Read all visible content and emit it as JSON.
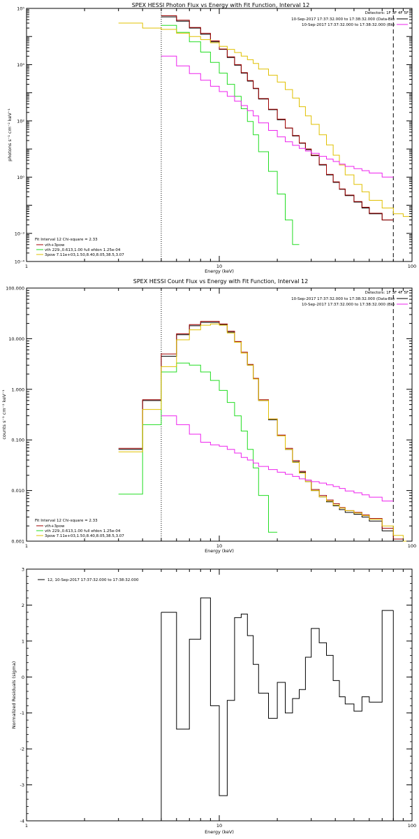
{
  "colors": {
    "data": "#000000",
    "total": "#a00000",
    "thermal": "#22dd22",
    "powerlaw": "#e0c000",
    "background": "#ee22ee",
    "frame": "#000000"
  },
  "chart_data": [
    {
      "type": "line",
      "title": "SPEX HESSI Photon Flux vs Energy with Fit Function, Interval 12",
      "xlabel": "Energy (keV)",
      "ylabel": "photons s⁻¹ cm⁻² keV⁻¹",
      "xscale": "log",
      "yscale": "log",
      "xlim": [
        1,
        100
      ],
      "ylim": [
        0.0001,
        100000
      ],
      "xticks": [
        "1",
        "10",
        "100"
      ],
      "yticks": [
        "10⁻⁴",
        "10⁻³",
        "10⁻²",
        "10⁻¹",
        "10⁰",
        "10¹",
        "10²",
        "10³",
        "10⁴",
        "10⁵"
      ],
      "yticks_printed": [
        "10⁻⁴",
        "10⁻³",
        "",
        "10⁰",
        "",
        "10²",
        "",
        "10⁴",
        "",
        "10⁵"
      ],
      "header_lines": [
        "Detectors: 1F 3F 4F 5F",
        "10-Sep-2017 17:37:32.000 to 17:38:32.000 (Data-Bk)",
        "10-Sep-2017 17:37:32.000 to 17:38:32.000 (Bk)"
      ],
      "legend": [
        "Fit Interval 12   Chi-square = 2.33",
        "vth+3pow",
        "vth 229.,0.613,1.00  full efdon 1.25e-04",
        "3pow 7.11e+03,1.50,8.40,8.05,38.5,3.07"
      ],
      "vlines": [
        {
          "x": 5.0,
          "style": "dotted"
        },
        {
          "x": 80,
          "style": "dashed"
        }
      ],
      "edges": [
        3.0,
        4.0,
        5.0,
        6.0,
        7.0,
        8.0,
        9.0,
        10.0,
        11.0,
        12.0,
        13.0,
        14.0,
        15.0,
        16.0,
        18.0,
        20.0,
        22.0,
        24.0,
        26.0,
        28.0,
        30.0,
        33.0,
        36.0,
        39.0,
        42.0,
        45.0,
        50.0,
        55.0,
        60.0,
        70.0,
        80.0,
        90.0,
        100.0
      ],
      "series": [
        {
          "name": "Data-Bk",
          "color": "#000000",
          "values": [
            null,
            null,
            50000,
            35000,
            20000,
            12000,
            6500,
            3500,
            1800,
            950,
            500,
            260,
            140,
            60,
            25,
            11,
            5.5,
            2.9,
            1.6,
            0.95,
            0.58,
            0.27,
            0.12,
            0.065,
            0.037,
            0.022,
            0.013,
            0.008,
            0.005,
            0.003,
            null,
            null
          ]
        },
        {
          "name": "vth+3pow",
          "color": "#a00000",
          "values": [
            null,
            null,
            55000,
            38000,
            21000,
            13000,
            7000,
            3600,
            1900,
            1000,
            520,
            270,
            145,
            62,
            26,
            11.5,
            5.6,
            3.0,
            1.65,
            1.0,
            0.6,
            0.28,
            0.125,
            0.068,
            0.038,
            0.023,
            0.0135,
            0.0085,
            0.0052,
            0.003,
            null,
            null
          ]
        },
        {
          "name": "vth",
          "color": "#22dd22",
          "values": [
            null,
            null,
            25000,
            14000,
            6500,
            2800,
            1200,
            500,
            200,
            75,
            27,
            9.5,
            3.2,
            0.8,
            0.16,
            0.025,
            0.003,
            0.0004,
            null,
            null,
            null,
            null,
            null,
            null,
            null,
            null,
            null,
            null,
            null,
            null,
            null,
            null
          ]
        },
        {
          "name": "3pow",
          "color": "#e0c000",
          "values": [
            30000,
            20000,
            18000,
            13000,
            10000,
            7800,
            6000,
            4500,
            3500,
            2700,
            2000,
            1500,
            1100,
            700,
            420,
            240,
            130,
            65,
            32,
            15,
            7.5,
            3.2,
            1.4,
            0.6,
            0.27,
            0.12,
            0.055,
            0.03,
            0.015,
            0.008,
            0.005,
            0.004
          ]
        },
        {
          "name": "Bk",
          "color": "#ee22ee",
          "values": [
            null,
            null,
            2000,
            900,
            480,
            280,
            170,
            110,
            75,
            50,
            35,
            23,
            15,
            8.5,
            4.6,
            2.7,
            1.8,
            1.35,
            1.05,
            0.85,
            0.7,
            0.55,
            0.44,
            0.36,
            0.29,
            0.24,
            0.2,
            0.17,
            0.14,
            0.1,
            null,
            null
          ]
        }
      ]
    },
    {
      "type": "line",
      "title": "SPEX HESSI Count Flux vs Energy with Fit Function, Interval 12",
      "xlabel": "Energy (keV)",
      "ylabel": "counts s⁻¹ cm⁻² keV⁻¹",
      "xscale": "log",
      "yscale": "log",
      "xlim": [
        1,
        100
      ],
      "ylim": [
        0.001,
        100
      ],
      "xticks": [
        "1",
        "10",
        "100"
      ],
      "yticks": [
        "0.001",
        "0.010",
        "0.100",
        "1.000",
        "10.000",
        "100.000"
      ],
      "header_lines": [
        "Detectors: 1F 3F 4F 5F",
        "10-Sep-2017 17:37:32.000 to 17:38:32.000 (Data-Bk)",
        "10-Sep-2017 17:37:32.000 to 17:38:32.000 (Bk)"
      ],
      "legend": [
        "Fit Interval 12   Chi-square = 2.33",
        "vth+3pow",
        "vth 229.,0.613,1.00  full efdon 1.25e-04",
        "3pow 7.11e+03,1.50,8.40,8.05,38.5,3.07"
      ],
      "vlines": [
        {
          "x": 5.0,
          "style": "dotted"
        },
        {
          "x": 80,
          "style": "dashed"
        }
      ],
      "edges": [
        3.0,
        4.0,
        5.0,
        6.0,
        7.0,
        8.0,
        9.0,
        10.0,
        11.0,
        12.0,
        13.0,
        14.0,
        15.0,
        16.0,
        18.0,
        20.0,
        22.0,
        24.0,
        26.0,
        28.0,
        30.0,
        33.0,
        36.0,
        39.0,
        42.0,
        45.0,
        50.0,
        55.0,
        60.0,
        70.0,
        80.0,
        90.0,
        100.0
      ],
      "series": [
        {
          "name": "Data-Bk",
          "color": "#000000",
          "values": [
            0.065,
            0.6,
            4.5,
            12,
            18,
            21,
            21,
            19,
            13.5,
            8.5,
            5.2,
            3.0,
            1.6,
            0.6,
            0.25,
            0.12,
            0.065,
            0.037,
            0.023,
            0.015,
            0.01,
            0.0075,
            0.006,
            0.005,
            0.0042,
            0.0037,
            0.0034,
            0.003,
            0.0025,
            0.0016,
            0.001,
            null
          ]
        },
        {
          "name": "vth+3pow",
          "color": "#a00000",
          "values": [
            0.068,
            0.62,
            5.0,
            12.5,
            19,
            22,
            22,
            19.5,
            14,
            8.8,
            5.4,
            3.1,
            1.65,
            0.62,
            0.26,
            0.125,
            0.068,
            0.039,
            0.024,
            0.016,
            0.0105,
            0.008,
            0.0065,
            0.0055,
            0.0046,
            0.004,
            0.0037,
            0.0033,
            0.0028,
            0.0018,
            0.0011,
            null
          ]
        },
        {
          "name": "vth",
          "color": "#22dd22",
          "values": [
            0.0085,
            0.2,
            2.2,
            3.3,
            3.0,
            2.2,
            1.5,
            0.95,
            0.55,
            0.3,
            0.15,
            0.065,
            0.028,
            0.008,
            0.0015,
            null,
            null,
            null,
            null,
            null,
            null,
            null,
            null,
            null,
            null,
            null,
            null,
            null,
            null,
            null,
            null,
            null
          ]
        },
        {
          "name": "3pow",
          "color": "#e0c000",
          "values": [
            0.058,
            0.4,
            2.8,
            9.5,
            15,
            18.5,
            19.5,
            18.5,
            13,
            8.5,
            5.2,
            3.0,
            1.6,
            0.6,
            0.26,
            0.12,
            0.065,
            0.036,
            0.022,
            0.015,
            0.01,
            0.0075,
            0.0062,
            0.0052,
            0.0045,
            0.004,
            0.0036,
            0.0032,
            0.0027,
            0.002,
            0.0013,
            0.001
          ]
        },
        {
          "name": "Bk",
          "color": "#ee22ee",
          "values": [
            null,
            null,
            0.3,
            0.2,
            0.13,
            0.09,
            0.08,
            0.075,
            0.065,
            0.055,
            0.045,
            0.04,
            0.035,
            0.03,
            0.026,
            0.023,
            0.021,
            0.019,
            0.017,
            0.016,
            0.015,
            0.014,
            0.013,
            0.012,
            0.011,
            0.0098,
            0.009,
            0.0082,
            0.0074,
            0.0062,
            null,
            null
          ]
        }
      ]
    },
    {
      "type": "line",
      "title": "",
      "xlabel": "Energy (keV)",
      "ylabel": "Normalized Residuals (sigma)",
      "xscale": "log",
      "yscale": "linear",
      "xlim": [
        1,
        100
      ],
      "ylim": [
        -4,
        3
      ],
      "xticks": [
        "1",
        "10",
        "100"
      ],
      "yticks": [
        "-4",
        "-3",
        "-2",
        "-1",
        "0",
        "1",
        "2",
        "3"
      ],
      "legend": [
        "12, 10-Sep-2017 17:37:32.000 to 17:38:32.000"
      ],
      "edges": [
        5.0,
        6.0,
        7.0,
        8.0,
        9.0,
        10.0,
        11.0,
        12.0,
        13.0,
        14.0,
        15.0,
        16.0,
        18.0,
        20.0,
        22.0,
        24.0,
        26.0,
        28.0,
        30.0,
        33.0,
        36.0,
        39.0,
        42.0,
        45.0,
        50.0,
        55.0,
        60.0,
        65.0,
        70.0,
        80.0
      ],
      "series": [
        {
          "name": "12, 10-Sep-2017 17:37:32.000 to 17:38:32.000",
          "color": "#000000",
          "values": [
            1.8,
            -1.45,
            1.05,
            2.2,
            -0.8,
            -3.3,
            -0.65,
            1.65,
            1.75,
            1.15,
            0.35,
            -0.45,
            -1.15,
            -0.15,
            -1.0,
            -0.6,
            -0.35,
            0.55,
            1.35,
            0.95,
            0.6,
            -0.1,
            -0.55,
            -0.75,
            -0.95,
            -0.55,
            -0.7,
            -0.7,
            1.85
          ]
        }
      ]
    }
  ]
}
